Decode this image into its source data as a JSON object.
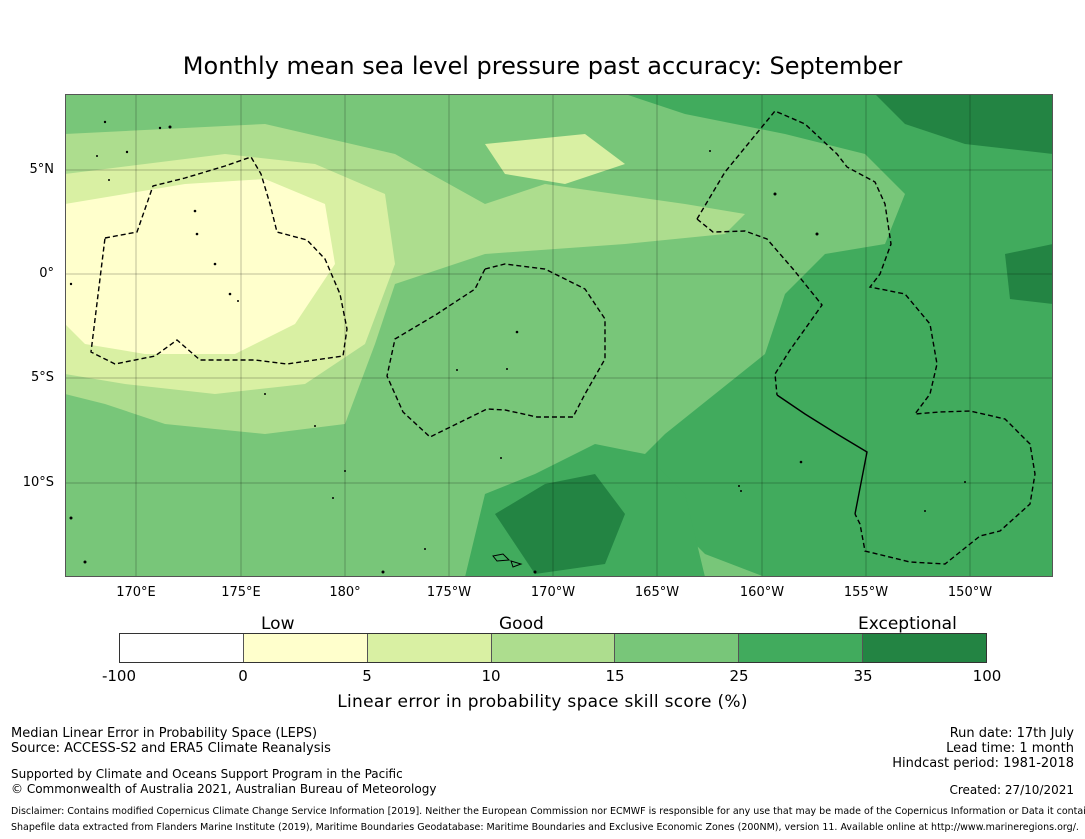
{
  "title": "Monthly mean sea level pressure past accuracy: September",
  "map": {
    "lat_labels": [
      "5°N",
      "0°",
      "5°S",
      "10°S"
    ],
    "lon_labels": [
      "170°E",
      "175°E",
      "180°",
      "175°W",
      "170°W",
      "165°W",
      "160°W",
      "155°W",
      "150°W"
    ],
    "colors": {
      "c0": "#ffffff",
      "c1": "#ffffcc",
      "c2": "#d9f0a3",
      "c3": "#addd8e",
      "c4": "#78c679",
      "c5": "#41ab5d",
      "c6": "#238443"
    }
  },
  "legend": {
    "categories": [
      "Low",
      "Good",
      "Exceptional"
    ],
    "ticks": [
      "-100",
      "0",
      "5",
      "10",
      "15",
      "25",
      "35",
      "100"
    ],
    "label": "Linear error in probability space skill score (%)"
  },
  "footer": {
    "left": {
      "line1": "Median Linear Error in Probability Space (LEPS)",
      "line2": "Source: ACCESS-S2 and ERA5 Climate Reanalysis",
      "line3": "Supported by Climate and Oceans Support Program in the Pacific",
      "line4": "© Commonwealth of Australia 2021, Australian Bureau of Meteorology"
    },
    "right": {
      "run_date": "Run date: 17th July",
      "lead_time": "Lead time: 1 month",
      "hindcast": "Hindcast period: 1981-2018",
      "created": "Created: 27/10/2021"
    },
    "disclaimer": "Disclaimer: Contains modified Copernicus Climate Change Service Information [2019]. Neither the European Commission nor ECMWF is responsible for any use that may be made of the Copernicus Information or Data it contains.",
    "shapefile": "Shapefile data extracted from Flanders Marine Institute (2019), Maritime Boundaries Geodatabase: Maritime Boundaries and Exclusive Economic Zones (200NM), version 11. Available online at http://www.marineregions.org/."
  }
}
